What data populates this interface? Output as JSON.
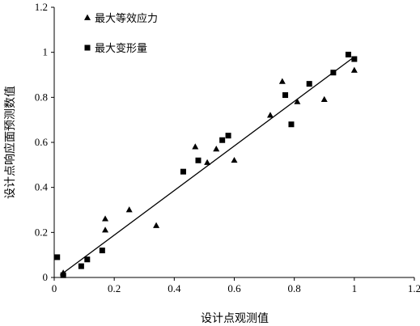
{
  "chart_data": {
    "type": "scatter",
    "title": "",
    "xlabel": "设计点观测值",
    "ylabel": "设计点响应面预测数值",
    "xlim": [
      0,
      1.2
    ],
    "ylim": [
      0,
      1.2
    ],
    "x_ticks": [
      "0",
      "0.2",
      "0.4",
      "0.6",
      "0.8",
      "1",
      "1.2"
    ],
    "y_ticks": [
      "0",
      "0.2",
      "0.4",
      "0.6",
      "0.8",
      "1",
      "1.2"
    ],
    "grid": false,
    "legend_position": "top-left",
    "series": [
      {
        "name": "最大等效应力",
        "marker": "triangle",
        "color": "#000000",
        "points": [
          [
            0.03,
            0.02
          ],
          [
            0.17,
            0.21
          ],
          [
            0.17,
            0.26
          ],
          [
            0.25,
            0.3
          ],
          [
            0.34,
            0.23
          ],
          [
            0.47,
            0.58
          ],
          [
            0.51,
            0.51
          ],
          [
            0.54,
            0.57
          ],
          [
            0.6,
            0.52
          ],
          [
            0.72,
            0.72
          ],
          [
            0.76,
            0.87
          ],
          [
            0.81,
            0.78
          ],
          [
            0.9,
            0.79
          ],
          [
            1.0,
            0.92
          ]
        ]
      },
      {
        "name": "最大变形量",
        "marker": "square",
        "color": "#000000",
        "points": [
          [
            0.01,
            0.09
          ],
          [
            0.03,
            0.01
          ],
          [
            0.09,
            0.05
          ],
          [
            0.11,
            0.08
          ],
          [
            0.16,
            0.12
          ],
          [
            0.43,
            0.47
          ],
          [
            0.48,
            0.52
          ],
          [
            0.56,
            0.61
          ],
          [
            0.58,
            0.63
          ],
          [
            0.77,
            0.81
          ],
          [
            0.79,
            0.68
          ],
          [
            0.85,
            0.86
          ],
          [
            0.93,
            0.91
          ],
          [
            0.98,
            0.99
          ],
          [
            1.0,
            0.97
          ]
        ]
      }
    ],
    "trendline": {
      "x": [
        0.02,
        1.0
      ],
      "y": [
        0.01,
        0.98
      ]
    }
  }
}
